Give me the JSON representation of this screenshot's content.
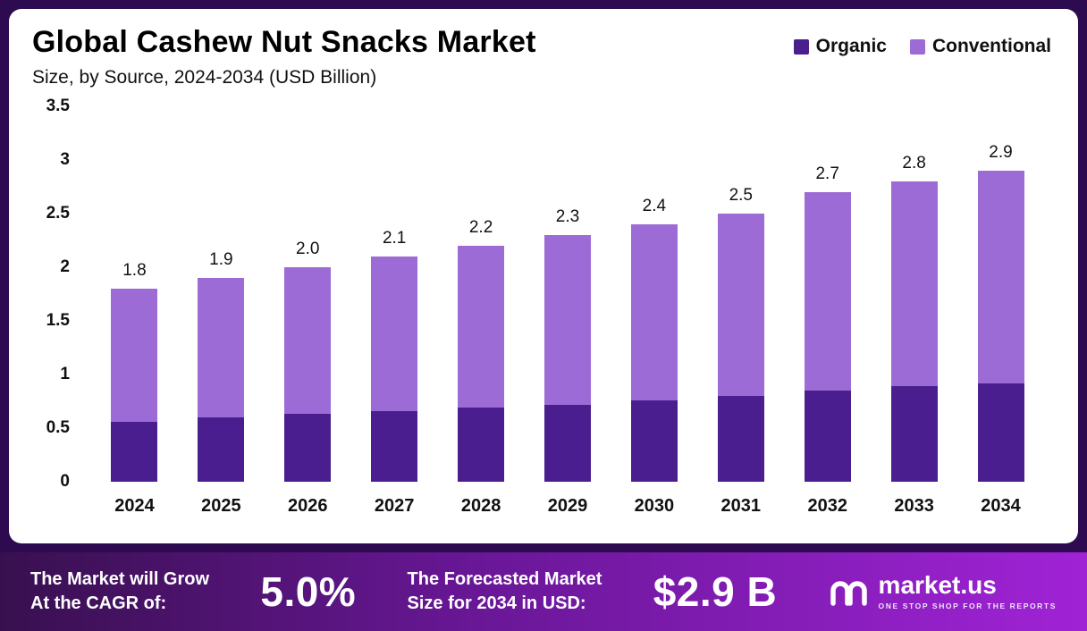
{
  "header": {
    "title": "Global Cashew Nut Snacks Market",
    "subtitle": "Size, by Source, 2024-2034 (USD Billion)"
  },
  "legend": [
    {
      "label": "Organic",
      "color": "#4b1e8f"
    },
    {
      "label": "Conventional",
      "color": "#9c6bd6"
    }
  ],
  "chart_data": {
    "type": "bar",
    "stacked": true,
    "title": "Global Cashew Nut Snacks Market",
    "subtitle": "Size, by Source, 2024-2034 (USD Billion)",
    "unit": "USD Billion",
    "categories": [
      "2024",
      "2025",
      "2026",
      "2027",
      "2028",
      "2029",
      "2030",
      "2031",
      "2032",
      "2033",
      "2034"
    ],
    "series": [
      {
        "name": "Organic",
        "color": "#4b1e8f",
        "values": [
          0.56,
          0.6,
          0.63,
          0.66,
          0.69,
          0.72,
          0.76,
          0.8,
          0.85,
          0.89,
          0.92
        ]
      },
      {
        "name": "Conventional",
        "color": "#9c6bd6",
        "values": [
          1.24,
          1.3,
          1.37,
          1.44,
          1.51,
          1.58,
          1.64,
          1.7,
          1.85,
          1.91,
          1.98
        ]
      }
    ],
    "totals": [
      "1.8",
      "1.9",
      "2.0",
      "2.1",
      "2.2",
      "2.3",
      "2.4",
      "2.5",
      "2.7",
      "2.8",
      "2.9"
    ],
    "ylim": [
      0,
      3.5
    ],
    "yticks": [
      "3.5",
      "3",
      "2.5",
      "2",
      "1.5",
      "1",
      "0.5",
      "0"
    ],
    "grid": false,
    "legend_position": "top-right"
  },
  "banner": {
    "growth_label_line1": "The Market will Grow",
    "growth_label_line2": "At the CAGR of:",
    "cagr_value": "5.0%",
    "forecast_label_line1": "The Forecasted Market",
    "forecast_label_line2": "Size for 2034 in USD:",
    "forecast_value": "$2.9 B",
    "brand": "market.us",
    "brand_tagline": "ONE STOP SHOP FOR THE REPORTS"
  }
}
